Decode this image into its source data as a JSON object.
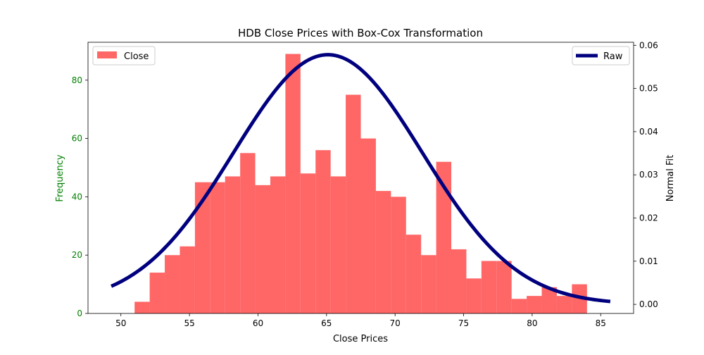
{
  "chart_data": {
    "type": "bar",
    "title": "HDB Close Prices with Box-Cox Transformation",
    "xlabel": "Close Prices",
    "ylabel": "Frequency",
    "y2label": "Normal Fit",
    "xlim": [
      47.6,
      87.4
    ],
    "ylim": [
      0,
      93
    ],
    "y2lim": [
      -0.0021,
      0.0607
    ],
    "xticks": [
      50,
      55,
      60,
      65,
      70,
      75,
      80,
      85
    ],
    "yticks": [
      0,
      20,
      40,
      60,
      80
    ],
    "y2ticks": [
      0.0,
      0.01,
      0.02,
      0.03,
      0.04,
      0.05,
      0.06
    ],
    "y2tick_labels": [
      "0.00",
      "0.01",
      "0.02",
      "0.03",
      "0.04",
      "0.05",
      "0.06"
    ],
    "grid": false,
    "histogram": {
      "name": "Close",
      "color": "#ff6666",
      "bin_edges": [
        51.0,
        52.1,
        53.2,
        54.3,
        55.4,
        56.5,
        57.6,
        58.7,
        59.8,
        60.9,
        62.0,
        63.1,
        64.2,
        65.3,
        66.4,
        67.5,
        68.6,
        69.7,
        70.8,
        71.9,
        73.0,
        74.1,
        75.2,
        76.3,
        77.4,
        78.5,
        79.6,
        80.7,
        81.8,
        82.9,
        84.0
      ],
      "counts": [
        4,
        14,
        20,
        23,
        45,
        45,
        47,
        55,
        44,
        47,
        89,
        48,
        56,
        47,
        75,
        60,
        42,
        40,
        27,
        20,
        52,
        22,
        12,
        18,
        18,
        5,
        6,
        9,
        6,
        10
      ]
    },
    "series": [
      {
        "name": "Raw",
        "color": "#00007f",
        "axis": "right",
        "mean": 65.1,
        "std": 6.9,
        "x_range": [
          49.3,
          85.7
        ]
      }
    ],
    "legend": {
      "left": {
        "position": "top-left",
        "label": "Close"
      },
      "right": {
        "position": "top-right",
        "label": "Raw"
      }
    },
    "colors": {
      "left_axis": "#008000",
      "right_axis": "#000000",
      "bars": "#ff6666",
      "line": "#00007f"
    }
  }
}
